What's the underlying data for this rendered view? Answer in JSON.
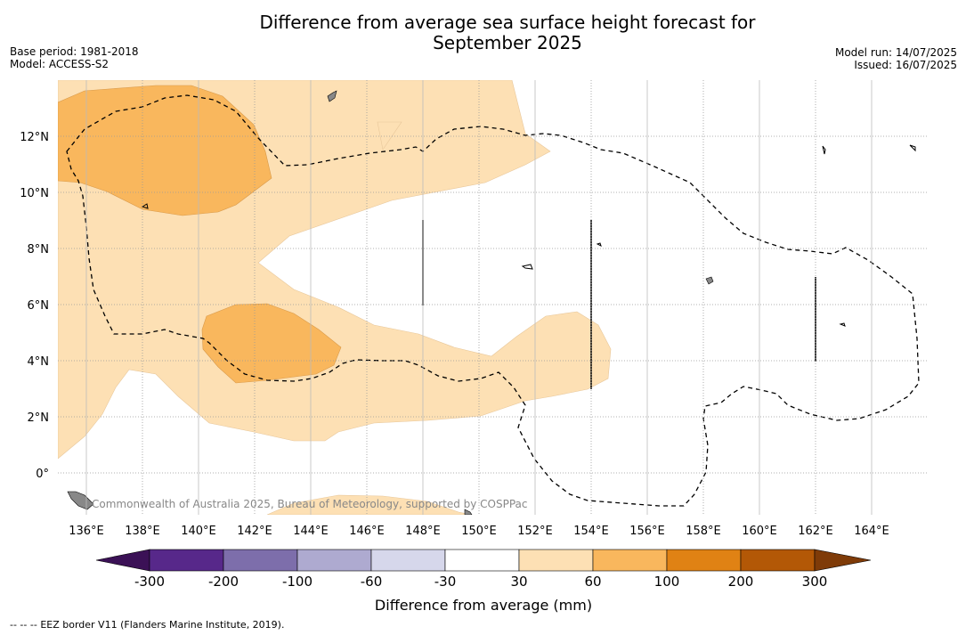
{
  "title": {
    "line1": "Difference from average sea surface height forecast for",
    "line2": "September 2025"
  },
  "meta_left": {
    "base_period": "Base period: 1981-2018",
    "model": "Model: ACCESS-S2"
  },
  "meta_right": {
    "model_run": "Model run: 14/07/2025",
    "issued": "Issued: 16/07/2025"
  },
  "map": {
    "lon_labels": [
      "136°E",
      "138°E",
      "140°E",
      "142°E",
      "144°E",
      "146°E",
      "148°E",
      "150°E",
      "152°E",
      "154°E",
      "156°E",
      "158°E",
      "160°E",
      "162°E",
      "164°E"
    ],
    "lat_labels": [
      "12°N",
      "10°N",
      "8°N",
      "6°N",
      "4°N",
      "2°N",
      "0°"
    ],
    "copyright": "Commonwealth of Australia 2025, Bureau of Meteorology, supported by COSPPac",
    "legend_line": "EEZ border V11 (Flanders Marine Institute, 2019).",
    "legend_symbol": "-- -- --"
  },
  "colorbar": {
    "label": "Difference from average (mm)",
    "ticks": [
      "-300",
      "-200",
      "-100",
      "-60",
      "-30",
      "30",
      "60",
      "100",
      "200",
      "300"
    ],
    "colors": [
      "#3b1156",
      "#57288a",
      "#7d6eab",
      "#aeaad0",
      "#d6d7eb",
      "#ffffff",
      "#fde0b4",
      "#f9b75d",
      "#e08214",
      "#b35806",
      "#7f3b08"
    ]
  }
}
